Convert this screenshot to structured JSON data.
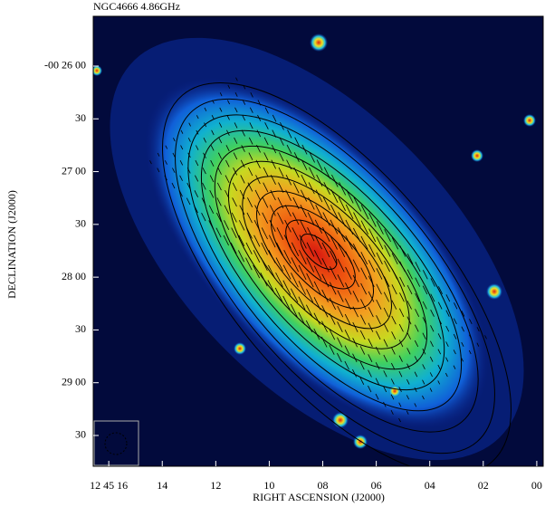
{
  "chart_data": {
    "type": "image",
    "title": "NGC4666 4.86GHz",
    "xlabel": "RIGHT ASCENSION (J2000)",
    "ylabel": "DECLINATION (J2000)",
    "xlim": [
      16.58,
      -0.24
    ],
    "xticks": [
      {
        "value": 16,
        "label": "12 45 16"
      },
      14,
      12,
      10,
      {
        "value": 8,
        "label": "08"
      },
      {
        "value": 6,
        "label": "06"
      },
      {
        "value": 4,
        "label": "04"
      },
      {
        "value": 2,
        "label": "02"
      },
      {
        "value": 0,
        "label": "00"
      }
    ],
    "ylim": [
      -1787.5,
      -1531.7
    ],
    "yticks": [
      {
        "value": -1560,
        "label": "-00 26 00"
      },
      {
        "value": -1590,
        "label": "30"
      },
      {
        "value": -1620,
        "label": "27 00"
      },
      {
        "value": -1650,
        "label": "30"
      },
      {
        "value": -1680,
        "label": "28 00"
      },
      {
        "value": -1710,
        "label": "30"
      },
      {
        "value": -1740,
        "label": "29 00"
      },
      {
        "value": -1770,
        "label": "30"
      }
    ]
  }
}
